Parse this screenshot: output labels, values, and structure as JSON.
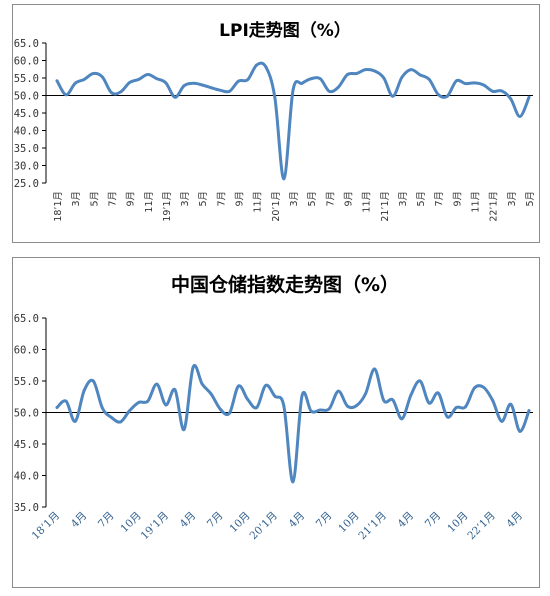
{
  "chart_data": [
    {
      "type": "line",
      "title": "LPI走势图（%）",
      "ylim": [
        25.0,
        65.0
      ],
      "yticks": [
        "65.0",
        "60.0",
        "55.0",
        "50.0",
        "45.0",
        "40.0",
        "35.0",
        "30.0",
        "25.0"
      ],
      "ytick_values": [
        65,
        60,
        55,
        50,
        45,
        40,
        35,
        30,
        25
      ],
      "baseline": 50,
      "x": [
        "18’1月",
        "2月",
        "3月",
        "4月",
        "5月",
        "6月",
        "7月",
        "8月",
        "9月",
        "10月",
        "11月",
        "12月",
        "19’1月",
        "2月",
        "3月",
        "4月",
        "5月",
        "6月",
        "7月",
        "8月",
        "9月",
        "10月",
        "11月",
        "12月",
        "20’1月",
        "2月",
        "3月",
        "4月",
        "5月",
        "6月",
        "7月",
        "8月",
        "9月",
        "10月",
        "11月",
        "12月",
        "21’1月",
        "2月",
        "3月",
        "4月",
        "5月",
        "6月",
        "7月",
        "8月",
        "9月",
        "10月",
        "11月",
        "12月",
        "22’1月",
        "2月",
        "3月",
        "4月",
        "5月"
      ],
      "tick_labels": [
        "18’1月",
        "3月",
        "5月",
        "7月",
        "9月",
        "11月",
        "19’1月",
        "3月",
        "5月",
        "7月",
        "9月",
        "11月",
        "20’1月",
        "3月",
        "5月",
        "7月",
        "9月",
        "11月",
        "21’1月",
        "3月",
        "5月",
        "7月",
        "9月",
        "11月",
        "22’1月",
        "3月",
        "5月"
      ],
      "values": [
        54.2,
        50.2,
        53.5,
        54.6,
        56.3,
        55.3,
        50.8,
        51.0,
        53.7,
        54.6,
        56.0,
        54.8,
        53.6,
        49.5,
        52.8,
        53.5,
        53.0,
        52.2,
        51.5,
        51.2,
        54.1,
        54.5,
        58.7,
        58.2,
        49.5,
        26.2,
        51.5,
        53.5,
        54.8,
        54.8,
        51.2,
        52.4,
        56.0,
        56.3,
        57.4,
        57.0,
        55.0,
        49.8,
        55.2,
        57.4,
        55.9,
        54.6,
        50.3,
        49.8,
        54.2,
        53.4,
        53.6,
        53.0,
        51.2,
        51.3,
        49.0,
        44.0,
        49.5
      ]
    },
    {
      "type": "line",
      "title": "中国仓储指数走势图（%）",
      "ylim": [
        35.0,
        65.0
      ],
      "yticks": [
        "65.0",
        "60.0",
        "55.0",
        "50.0",
        "45.0",
        "40.0",
        "35.0"
      ],
      "ytick_values": [
        65,
        60,
        55,
        50,
        45,
        40,
        35
      ],
      "baseline": 50,
      "x": [
        "18’1月",
        "2月",
        "3月",
        "4月",
        "5月",
        "6月",
        "7月",
        "8月",
        "9月",
        "10月",
        "11月",
        "12月",
        "19’1月",
        "2月",
        "3月",
        "4月",
        "5月",
        "6月",
        "7月",
        "8月",
        "9月",
        "10月",
        "11月",
        "12月",
        "20’1月",
        "2月",
        "3月",
        "4月",
        "5月",
        "6月",
        "7月",
        "8月",
        "9月",
        "10月",
        "11月",
        "12月",
        "21’1月",
        "2月",
        "3月",
        "4月",
        "5月",
        "6月",
        "7月",
        "8月",
        "9月",
        "10月",
        "11月",
        "12月",
        "22’1月",
        "2月",
        "3月",
        "4月",
        "5月"
      ],
      "tick_labels": [
        "18’1月",
        "4月",
        "7月",
        "10月",
        "19’1月",
        "4月",
        "7月",
        "10月",
        "20’1月",
        "4月",
        "7月",
        "10月",
        "21’1月",
        "4月",
        "7月",
        "10月",
        "22’1月",
        "4月"
      ],
      "values": [
        50.8,
        51.8,
        48.6,
        53.5,
        55.0,
        50.7,
        49.2,
        48.5,
        50.3,
        51.6,
        51.8,
        54.5,
        51.2,
        53.6,
        47.3,
        57.2,
        54.5,
        52.9,
        50.5,
        49.9,
        54.2,
        52.1,
        50.8,
        54.3,
        52.6,
        51.0,
        39.0,
        52.7,
        50.2,
        50.4,
        50.6,
        53.4,
        51.0,
        51.1,
        53.0,
        56.9,
        51.9,
        52.0,
        49.0,
        52.8,
        55.0,
        51.5,
        53.1,
        49.3,
        50.8,
        50.9,
        53.9,
        54.0,
        51.9,
        48.6,
        51.3,
        47.0,
        50.3
      ]
    }
  ],
  "colors": {
    "line": "#4f86bf",
    "axis": "#000000",
    "frame": "#8c8c8c"
  }
}
